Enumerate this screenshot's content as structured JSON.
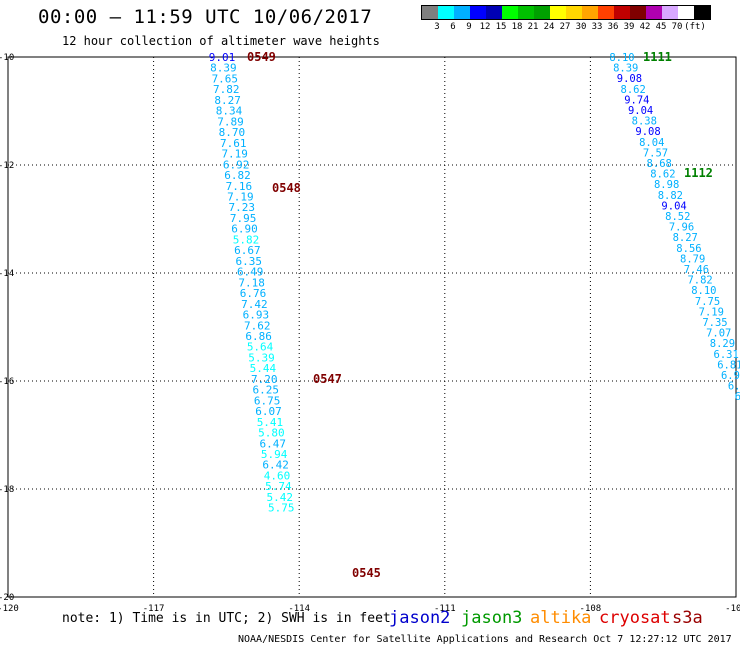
{
  "title": "00:00 – 11:59 UTC 10/06/2017",
  "subtitle": "12 hour collection of altimeter wave heights",
  "legend": {
    "colors": [
      "#7f7f7f",
      "#00ffff",
      "#00b0ff",
      "#0000ff",
      "#0000b4",
      "#00ff00",
      "#00c000",
      "#00a000",
      "#ffff00",
      "#ffd700",
      "#ffa500",
      "#ff4000",
      "#c00000",
      "#800000",
      "#b000b0",
      "#d8a8ff",
      "#ffffff",
      "#000000"
    ],
    "labels": [
      "3",
      "6",
      "9",
      "12",
      "15",
      "18",
      "21",
      "24",
      "27",
      "30",
      "33",
      "36",
      "39",
      "42",
      "45",
      "70",
      "(ft)"
    ]
  },
  "axes": {
    "lon_ticks": [
      "-120",
      "-117",
      "-114",
      "-111",
      "-108",
      "-105"
    ],
    "lat_ticks": [
      "-10",
      "-12",
      "-14",
      "-16",
      "-18",
      "-20"
    ]
  },
  "tracks": [
    {
      "times": [
        {
          "label": "0549",
          "color": "#800000"
        },
        {
          "label": "0548",
          "color": "#800000"
        },
        {
          "label": "0547",
          "color": "#800000"
        },
        {
          "label": "0545",
          "color": "#800000"
        }
      ],
      "values": [
        "9.01",
        "8.39",
        "7.65",
        "7.82",
        "8.27",
        "8.34",
        "7.89",
        "8.70",
        "7.61",
        "7.19",
        "6.92",
        "6.82",
        "7.16",
        "7.19",
        "7.23",
        "7.95",
        "6.90",
        "5.82",
        "6.67",
        "6.35",
        "6.49",
        "7.18",
        "6.76",
        "7.42",
        "6.93",
        "7.62",
        "6.86",
        "5.64",
        "5.39",
        "5.44",
        "7.20",
        "6.25",
        "6.75",
        "6.07",
        "5.41",
        "5.80",
        "6.47",
        "5.94",
        "6.42",
        "4.60",
        "5.74",
        "5.42",
        "5.75"
      ]
    },
    {
      "times": [
        {
          "label": "1111",
          "color": "#008000"
        },
        {
          "label": "1112",
          "color": "#008000"
        }
      ],
      "values": [
        "8.10",
        "8.39",
        "9.08",
        "8.62",
        "9.74",
        "9.04",
        "8.38",
        "9.08",
        "8.04",
        "7.57",
        "8.68",
        "8.62",
        "8.98",
        "8.82",
        "9.04",
        "8.52",
        "7.96",
        "8.27",
        "8.56",
        "8.79",
        "7.46",
        "7.82",
        "8.10",
        "7.75",
        "7.19",
        "7.35",
        "7.07",
        "8.29",
        "6.31",
        "6.81",
        "6.92",
        "6.7",
        "6.",
        "6"
      ]
    }
  ],
  "note": "note: 1) Time is in UTC; 2) SWH is in feet",
  "satellites": [
    {
      "name": "jason2",
      "color": "#0000cc"
    },
    {
      "name": "jason3",
      "color": "#009900"
    },
    {
      "name": "altika",
      "color": "#ff8c00"
    },
    {
      "name": "cryosat",
      "color": "#dd0000"
    },
    {
      "name": "s3a",
      "color": "#990000"
    }
  ],
  "credit": "NOAA/NESDIS Center for Satellite Applications and Research    Oct  7 12:27:12 UTC 2017"
}
